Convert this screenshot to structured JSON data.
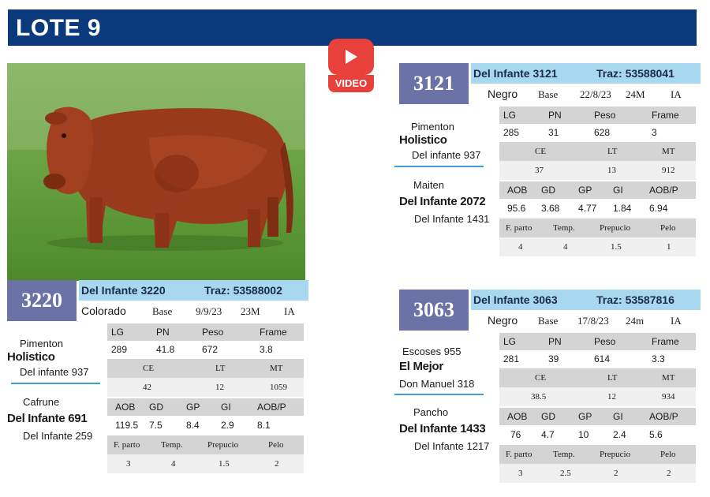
{
  "header": {
    "title": "LOTE 9"
  },
  "video": {
    "label": "VIDEO"
  },
  "cards": [
    {
      "id": "3220",
      "name": "Del Infante 3220",
      "traz": "Traz: 53588002",
      "color": "Colorado",
      "tipo": "Base",
      "fecha": "9/9/23",
      "edad": "23M",
      "servicio": "IA",
      "pedigree": {
        "sire_sire": "Pimenton",
        "sire": "Holistico",
        "sire_dam": "Del infante 937",
        "dam_sire": "Cafrune",
        "dam": "Del Infante 691",
        "dam_dam": "Del Infante 259"
      },
      "row1_headers": [
        "LG",
        "PN",
        "Peso",
        "Frame"
      ],
      "row1_values": [
        "289",
        "41.8",
        "672",
        "3.8"
      ],
      "row2_headers": [
        "CE",
        "LT",
        "MT"
      ],
      "row2_values": [
        "42",
        "12",
        "1059"
      ],
      "row3_headers": [
        "AOB",
        "GD",
        "GP",
        "GI",
        "AOB/P"
      ],
      "row3_values": [
        "119.5",
        "7.5",
        "8.4",
        "2.9",
        "8.1"
      ],
      "row4_headers": [
        "F. parto",
        "Temp.",
        "Prepucio",
        "Pelo"
      ],
      "row4_values": [
        "3",
        "4",
        "1.5",
        "2"
      ]
    },
    {
      "id": "3121",
      "name": "Del Infante 3121",
      "traz": "Traz: 53588041",
      "color": "Negro",
      "tipo": "Base",
      "fecha": "22/8/23",
      "edad": "24M",
      "servicio": "IA",
      "pedigree": {
        "sire_sire": "Pimenton",
        "sire": "Holistico",
        "sire_dam": "Del infante 937",
        "dam_sire": "Maiten",
        "dam": "Del Infante 2072",
        "dam_dam": "Del Infante 1431"
      },
      "row1_headers": [
        "LG",
        "PN",
        "Peso",
        "Frame"
      ],
      "row1_values": [
        "285",
        "31",
        "628",
        "3"
      ],
      "row2_headers": [
        "CE",
        "LT",
        "MT"
      ],
      "row2_values": [
        "37",
        "13",
        "912"
      ],
      "row3_headers": [
        "AOB",
        "GD",
        "GP",
        "GI",
        "AOB/P"
      ],
      "row3_values": [
        "95.6",
        "3.68",
        "4.77",
        "1.84",
        "6.94"
      ],
      "row4_headers": [
        "F. parto",
        "Temp.",
        "Prepucio",
        "Pelo"
      ],
      "row4_values": [
        "4",
        "4",
        "1.5",
        "1"
      ]
    },
    {
      "id": "3063",
      "name": "Del Infante 3063",
      "traz": "Traz: 53587816",
      "color": "Negro",
      "tipo": "Base",
      "fecha": "17/8/23",
      "edad": "24m",
      "servicio": "IA",
      "pedigree": {
        "sire_sire": "Escoses 955",
        "sire": "El Mejor",
        "sire_dam": "Don Manuel 318",
        "dam_sire": "Pancho",
        "dam": "Del Infante 1433",
        "dam_dam": "Del Infante 1217"
      },
      "row1_headers": [
        "LG",
        "PN",
        "Peso",
        "Frame"
      ],
      "row1_values": [
        "281",
        "39",
        "614",
        "3.3"
      ],
      "row2_headers": [
        "CE",
        "LT",
        "MT"
      ],
      "row2_values": [
        "38.5",
        "12",
        "934"
      ],
      "row3_headers": [
        "AOB",
        "GD",
        "GP",
        "GI",
        "AOB/P"
      ],
      "row3_values": [
        "76",
        "4.7",
        "10",
        "2.4",
        "5.6"
      ],
      "row4_headers": [
        "F. parto",
        "Temp.",
        "Prepucio",
        "Pelo"
      ],
      "row4_values": [
        "3",
        "2.5",
        "2",
        "2"
      ]
    }
  ]
}
